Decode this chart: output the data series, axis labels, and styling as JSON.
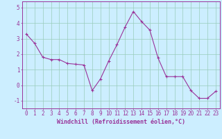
{
  "x": [
    0,
    1,
    2,
    3,
    4,
    5,
    6,
    7,
    8,
    9,
    10,
    11,
    12,
    13,
    14,
    15,
    16,
    17,
    18,
    19,
    20,
    21,
    22,
    23
  ],
  "y": [
    3.3,
    2.7,
    1.8,
    1.65,
    1.65,
    1.4,
    1.35,
    1.3,
    -0.35,
    0.4,
    1.55,
    2.6,
    3.75,
    4.75,
    4.1,
    3.55,
    1.75,
    0.55,
    0.55,
    0.55,
    -0.35,
    -0.85,
    -0.85,
    -0.4
  ],
  "line_color": "#993399",
  "marker": "+",
  "bg_color": "#cceeff",
  "grid_color": "#99ccbb",
  "xlabel": "Windchill (Refroidissement éolien,°C)",
  "ylim": [
    -1.5,
    5.4
  ],
  "xlim": [
    -0.5,
    23.5
  ],
  "yticks": [
    -1,
    0,
    1,
    2,
    3,
    4,
    5
  ],
  "xticks": [
    0,
    1,
    2,
    3,
    4,
    5,
    6,
    7,
    8,
    9,
    10,
    11,
    12,
    13,
    14,
    15,
    16,
    17,
    18,
    19,
    20,
    21,
    22,
    23
  ],
  "tick_color": "#993399",
  "label_color": "#993399",
  "tick_fontsize": 5.5,
  "xlabel_fontsize": 6.0,
  "spine_color": "#993399",
  "marker_size": 3,
  "line_width": 0.8
}
